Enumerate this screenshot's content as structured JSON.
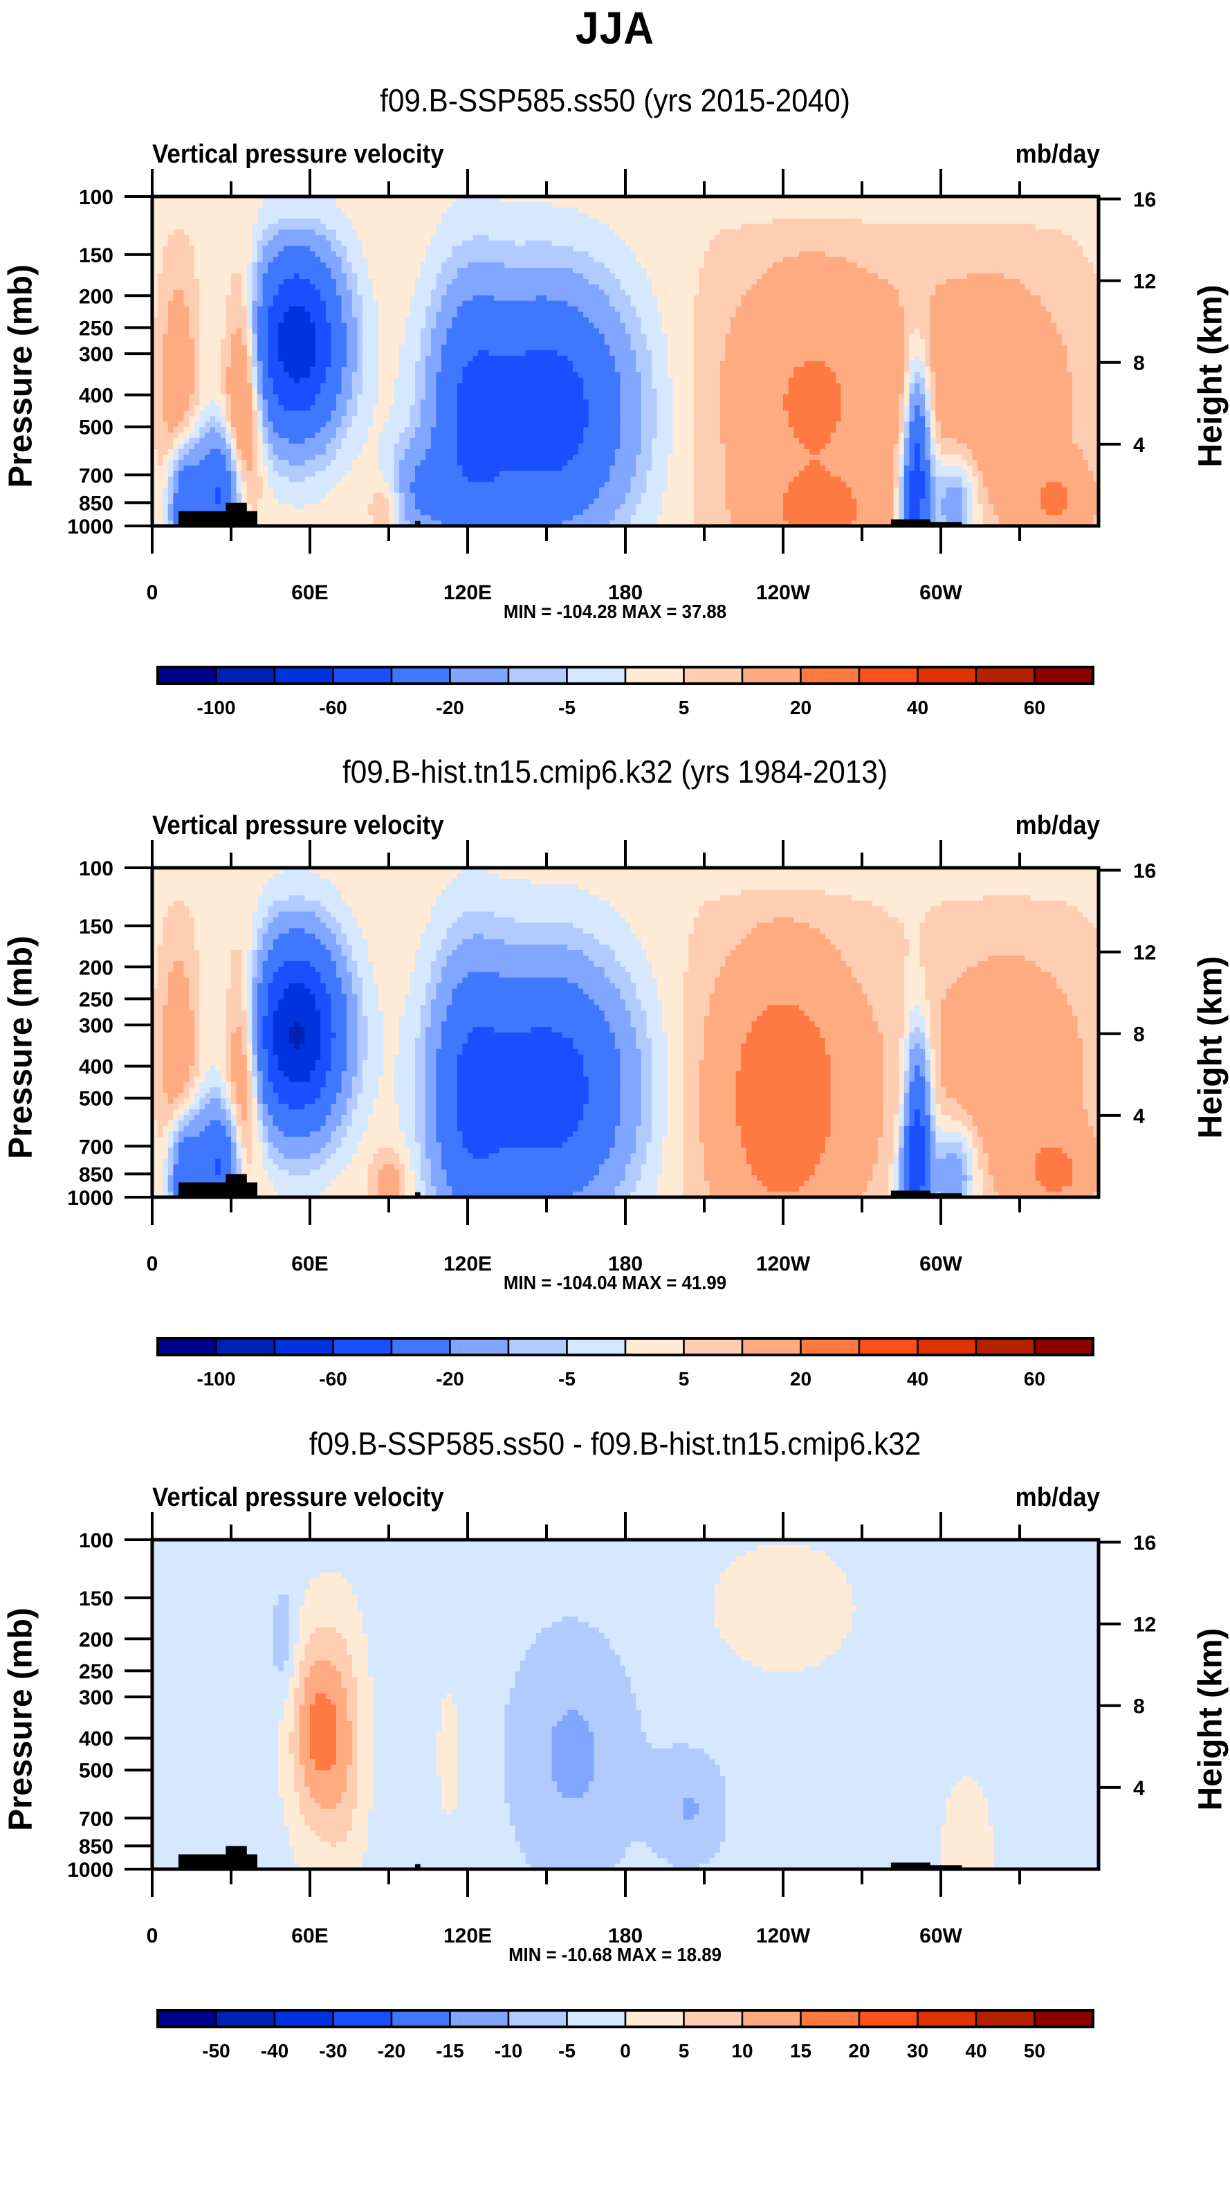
{
  "main_title": "JJA",
  "colors": {
    "palette": [
      "#00008c",
      "#0022b4",
      "#0033e0",
      "#1a4fff",
      "#4077ff",
      "#80a6ff",
      "#b2cbff",
      "#d6e8ff",
      "#ffead6",
      "#ffcdb2",
      "#ffab82",
      "#ff7a43",
      "#ff501a",
      "#e03300",
      "#b32100",
      "#8c0000"
    ],
    "topography": "#000000"
  },
  "chart_data": [
    {
      "type": "heatmap",
      "title": "f09.B-SSP585.ss50 (yrs 2015-2040)",
      "left_string": "Vertical pressure velocity",
      "right_string": "mb/day",
      "ylabel": "Pressure (mb)",
      "ylabel_right": "Height (km)",
      "xlabel": "",
      "x_ticks": [
        "0",
        "60E",
        "120E",
        "180",
        "120W",
        "60W"
      ],
      "x_tick_values": [
        0,
        60,
        120,
        180,
        240,
        300
      ],
      "xlim": [
        0,
        360
      ],
      "y_ticks": [
        "100",
        "150",
        "200",
        "250",
        "300",
        "400",
        "500",
        "700",
        "850",
        "1000"
      ],
      "y_tick_values": [
        100,
        150,
        200,
        250,
        300,
        400,
        500,
        700,
        850,
        1000
      ],
      "ylim": [
        1000,
        100
      ],
      "y_scale": "log",
      "y_right_ticks": [
        "16",
        "12",
        "8",
        "4"
      ],
      "y_right_tick_values": [
        16,
        12,
        8,
        4
      ],
      "min_max_text": "MIN = -104.28  MAX =  37.88",
      "min": -104.28,
      "max": 37.88,
      "colorbar": {
        "levels": [
          -100,
          -80,
          -60,
          -40,
          -20,
          -10,
          -5,
          0,
          5,
          10,
          20,
          30,
          40,
          50,
          60
        ],
        "labels": [
          "-100",
          "-60",
          "-20",
          "-5",
          "5",
          "20",
          "40",
          "60"
        ],
        "label_levels": [
          -100,
          -60,
          -20,
          -5,
          5,
          20,
          40,
          60
        ]
      },
      "features": [
        {
          "lon": 55,
          "p": 280,
          "v": -75,
          "wl": 12,
          "wp": 0.45
        },
        {
          "lon": 150,
          "p": 450,
          "v": -55,
          "wl": 22,
          "wp": 0.6
        },
        {
          "lon": 120,
          "p": 500,
          "v": -30,
          "wl": 10,
          "wp": 0.7
        },
        {
          "lon": 100,
          "p": 800,
          "v": -20,
          "wl": 8,
          "wp": 0.25
        },
        {
          "lon": 290,
          "p": 700,
          "v": -70,
          "wl": 4,
          "wp": 0.5
        },
        {
          "lon": 25,
          "p": 800,
          "v": -45,
          "wl": 6,
          "wp": 0.3
        },
        {
          "lon": 12,
          "p": 850,
          "v": -40,
          "wl": 4,
          "wp": 0.3
        },
        {
          "lon": 305,
          "p": 850,
          "v": -25,
          "wl": 6,
          "wp": 0.25
        },
        {
          "lon": 35,
          "p": 380,
          "v": 30,
          "wl": 5,
          "wp": 0.55
        },
        {
          "lon": 10,
          "p": 400,
          "v": 15,
          "wl": 5,
          "wp": 0.6
        },
        {
          "lon": 250,
          "p": 420,
          "v": 18,
          "wl": 26,
          "wp": 0.75
        },
        {
          "lon": 320,
          "p": 400,
          "v": 14,
          "wl": 25,
          "wp": 0.7
        },
        {
          "lon": 287,
          "p": 550,
          "v": 22,
          "wl": 3,
          "wp": 0.35
        },
        {
          "lon": 90,
          "p": 880,
          "v": 12,
          "wl": 5,
          "wp": 0.15
        },
        {
          "lon": 255,
          "p": 950,
          "v": 10,
          "wl": 20,
          "wp": 0.2
        },
        {
          "lon": 345,
          "p": 850,
          "v": 14,
          "wl": 10,
          "wp": 0.2
        }
      ],
      "background": 3
    },
    {
      "type": "heatmap",
      "title": "f09.B-hist.tn15.cmip6.k32 (yrs 1984-2013)",
      "left_string": "Vertical pressure velocity",
      "right_string": "mb/day",
      "ylabel": "Pressure (mb)",
      "ylabel_right": "Height (km)",
      "xlabel": "",
      "x_ticks": [
        "0",
        "60E",
        "120E",
        "180",
        "120W",
        "60W"
      ],
      "x_tick_values": [
        0,
        60,
        120,
        180,
        240,
        300
      ],
      "xlim": [
        0,
        360
      ],
      "y_ticks": [
        "100",
        "150",
        "200",
        "250",
        "300",
        "400",
        "500",
        "700",
        "850",
        "1000"
      ],
      "y_tick_values": [
        100,
        150,
        200,
        250,
        300,
        400,
        500,
        700,
        850,
        1000
      ],
      "ylim": [
        1000,
        100
      ],
      "y_scale": "log",
      "y_right_ticks": [
        "16",
        "12",
        "8",
        "4"
      ],
      "y_right_tick_values": [
        16,
        12,
        8,
        4
      ],
      "min_max_text": "MIN = -104.04  MAX =  41.99",
      "min": -104.04,
      "max": 41.99,
      "colorbar": {
        "levels": [
          -100,
          -80,
          -60,
          -40,
          -20,
          -10,
          -5,
          0,
          5,
          10,
          20,
          30,
          40,
          50,
          60
        ],
        "labels": [
          "-100",
          "-60",
          "-20",
          "-5",
          "5",
          "20",
          "40",
          "60"
        ],
        "label_levels": [
          -100,
          -60,
          -20,
          -5,
          5,
          20,
          40,
          60
        ]
      },
      "features": [
        {
          "lon": 55,
          "p": 320,
          "v": -85,
          "wl": 12,
          "wp": 0.45
        },
        {
          "lon": 150,
          "p": 470,
          "v": -55,
          "wl": 22,
          "wp": 0.6
        },
        {
          "lon": 120,
          "p": 500,
          "v": -30,
          "wl": 10,
          "wp": 0.7
        },
        {
          "lon": 290,
          "p": 700,
          "v": -70,
          "wl": 4,
          "wp": 0.5
        },
        {
          "lon": 25,
          "p": 800,
          "v": -45,
          "wl": 6,
          "wp": 0.3
        },
        {
          "lon": 12,
          "p": 850,
          "v": -40,
          "wl": 4,
          "wp": 0.3
        },
        {
          "lon": 305,
          "p": 850,
          "v": -25,
          "wl": 6,
          "wp": 0.25
        },
        {
          "lon": 35,
          "p": 400,
          "v": 28,
          "wl": 5,
          "wp": 0.55
        },
        {
          "lon": 10,
          "p": 400,
          "v": 15,
          "wl": 5,
          "wp": 0.6
        },
        {
          "lon": 240,
          "p": 500,
          "v": 24,
          "wl": 22,
          "wp": 0.8
        },
        {
          "lon": 325,
          "p": 420,
          "v": 14,
          "wl": 25,
          "wp": 0.7
        },
        {
          "lon": 287,
          "p": 550,
          "v": 22,
          "wl": 3,
          "wp": 0.35
        },
        {
          "lon": 90,
          "p": 900,
          "v": 12,
          "wl": 5,
          "wp": 0.15
        },
        {
          "lon": 345,
          "p": 850,
          "v": 14,
          "wl": 10,
          "wp": 0.2
        }
      ],
      "background": 3
    },
    {
      "type": "heatmap",
      "title": "f09.B-SSP585.ss50 - f09.B-hist.tn15.cmip6.k32",
      "left_string": "Vertical pressure velocity",
      "right_string": "mb/day",
      "ylabel": "Pressure (mb)",
      "ylabel_right": "Height (km)",
      "xlabel": "",
      "x_ticks": [
        "0",
        "60E",
        "120E",
        "180",
        "120W",
        "60W"
      ],
      "x_tick_values": [
        0,
        60,
        120,
        180,
        240,
        300
      ],
      "xlim": [
        0,
        360
      ],
      "y_ticks": [
        "100",
        "150",
        "200",
        "250",
        "300",
        "400",
        "500",
        "700",
        "850",
        "1000"
      ],
      "y_tick_values": [
        100,
        150,
        200,
        250,
        300,
        400,
        500,
        700,
        850,
        1000
      ],
      "ylim": [
        1000,
        100
      ],
      "y_scale": "log",
      "y_right_ticks": [
        "16",
        "12",
        "8",
        "4"
      ],
      "y_right_tick_values": [
        16,
        12,
        8,
        4
      ],
      "min_max_text": "MIN = -10.68  MAX =  18.89",
      "min": -10.68,
      "max": 18.89,
      "colorbar": {
        "levels": [
          -50,
          -40,
          -30,
          -20,
          -15,
          -10,
          -5,
          0,
          5,
          10,
          15,
          20,
          30,
          40,
          50
        ],
        "labels": [
          "-50",
          "-40",
          "-30",
          "-20",
          "-15",
          "-10",
          "-5",
          "0",
          "5",
          "10",
          "15",
          "20",
          "30",
          "40",
          "50"
        ],
        "label_levels": [
          -50,
          -40,
          -30,
          -20,
          -15,
          -10,
          -5,
          0,
          5,
          10,
          15,
          20,
          30,
          40,
          50
        ]
      },
      "features": [
        {
          "lon": 62,
          "p": 380,
          "v": 17,
          "wl": 7,
          "wp": 0.5
        },
        {
          "lon": 73,
          "p": 420,
          "v": 10,
          "wl": 6,
          "wp": 0.6
        },
        {
          "lon": 160,
          "p": 450,
          "v": -9,
          "wl": 18,
          "wp": 0.65
        },
        {
          "lon": 205,
          "p": 650,
          "v": -8,
          "wl": 10,
          "wp": 0.3
        },
        {
          "lon": 50,
          "p": 200,
          "v": -7,
          "wl": 4,
          "wp": 0.3
        },
        {
          "lon": 310,
          "p": 850,
          "v": 7,
          "wl": 6,
          "wp": 0.3
        },
        {
          "lon": 113,
          "p": 450,
          "v": 6,
          "wl": 3,
          "wp": 0.3
        },
        {
          "lon": 240,
          "p": 160,
          "v": 3,
          "wl": 30,
          "wp": 0.5
        },
        {
          "lon": 20,
          "p": 150,
          "v": 2,
          "wl": 15,
          "wp": 0.6
        }
      ],
      "background": -2
    }
  ]
}
